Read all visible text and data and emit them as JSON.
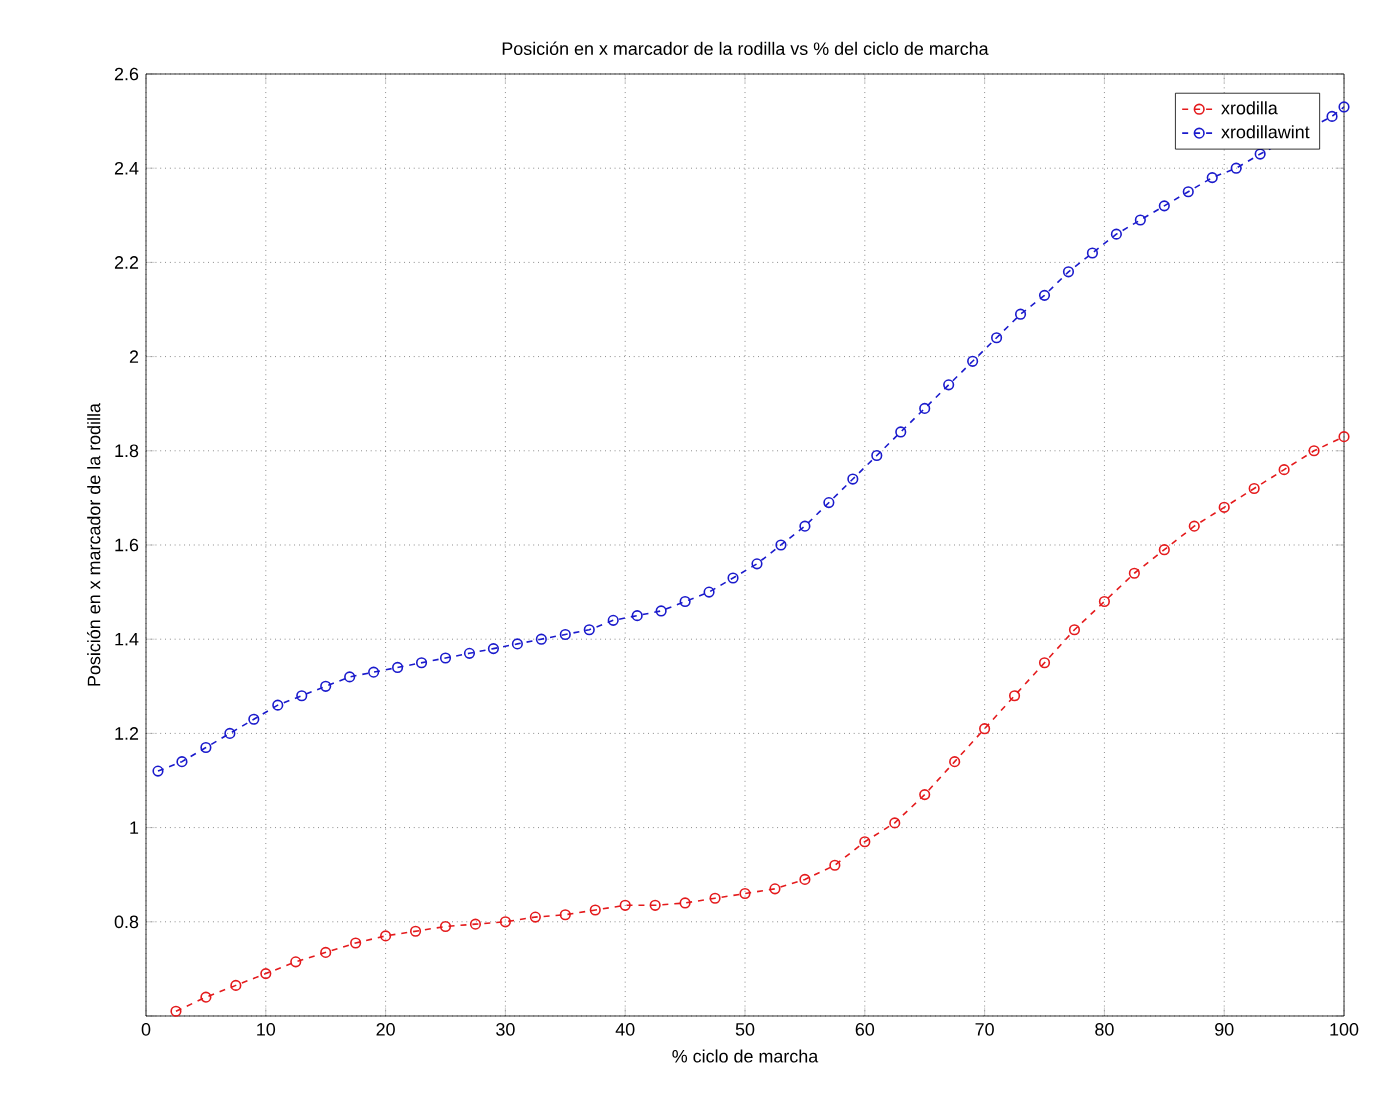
{
  "chart_data": {
    "type": "line",
    "title": "Posición en x marcador de la rodilla vs % del ciclo de marcha",
    "xlabel": "% ciclo de marcha",
    "ylabel": "Posición en x marcador de la rodilla",
    "xlim": [
      0,
      100
    ],
    "ylim": [
      0.6,
      2.6
    ],
    "xticks": [
      0,
      10,
      20,
      30,
      40,
      50,
      60,
      70,
      80,
      90,
      100
    ],
    "yticks": [
      {
        "value": 0.6,
        "label": null
      },
      0.8,
      1,
      1.2,
      1.4,
      1.6,
      1.8,
      2,
      2.2,
      2.4,
      2.6
    ],
    "grid": true,
    "legend": "top right",
    "marker": "circle",
    "line_style": "dashed",
    "series": [
      {
        "name": "xrodilla",
        "color": "#e41a1c",
        "x": [
          2.5,
          5,
          7.5,
          10,
          12.5,
          15,
          17.5,
          20,
          22.5,
          25,
          27.5,
          30,
          32.5,
          35,
          37.5,
          40,
          42.5,
          45,
          47.5,
          50,
          52.5,
          55,
          57.5,
          60,
          62.5,
          65,
          67.5,
          70,
          72.5,
          75,
          77.5,
          80,
          82.5,
          85,
          87.5,
          90,
          92.5,
          95,
          97.5,
          100
        ],
        "values": [
          0.61,
          0.64,
          0.665,
          0.69,
          0.715,
          0.735,
          0.755,
          0.77,
          0.78,
          0.79,
          0.795,
          0.8,
          0.81,
          0.815,
          0.825,
          0.835,
          0.835,
          0.84,
          0.85,
          0.86,
          0.87,
          0.89,
          0.92,
          0.97,
          1.01,
          1.07,
          1.14,
          1.21,
          1.28,
          1.35,
          1.42,
          1.48,
          1.54,
          1.59,
          1.64,
          1.68,
          1.72,
          1.76,
          1.8,
          1.83
        ]
      },
      {
        "name": "xrodillawint",
        "color": "#1a1acc",
        "x": [
          1,
          3,
          5,
          7,
          9,
          11,
          13,
          15,
          17,
          19,
          21,
          23,
          25,
          27,
          29,
          31,
          33,
          35,
          37,
          39,
          41,
          43,
          45,
          47,
          49,
          51,
          53,
          55,
          57,
          59,
          61,
          63,
          65,
          67,
          69,
          71,
          73,
          75,
          77,
          79,
          81,
          83,
          85,
          87,
          89,
          91,
          93,
          95,
          97,
          99,
          100
        ],
        "values": [
          1.12,
          1.14,
          1.17,
          1.2,
          1.23,
          1.26,
          1.28,
          1.3,
          1.32,
          1.33,
          1.34,
          1.35,
          1.36,
          1.37,
          1.38,
          1.39,
          1.4,
          1.41,
          1.42,
          1.44,
          1.45,
          1.46,
          1.48,
          1.5,
          1.53,
          1.56,
          1.6,
          1.64,
          1.69,
          1.74,
          1.79,
          1.84,
          1.89,
          1.94,
          1.99,
          2.04,
          2.09,
          2.13,
          2.18,
          2.22,
          2.26,
          2.29,
          2.32,
          2.35,
          2.38,
          2.4,
          2.43,
          null,
          null,
          2.51,
          2.53
        ]
      }
    ]
  }
}
